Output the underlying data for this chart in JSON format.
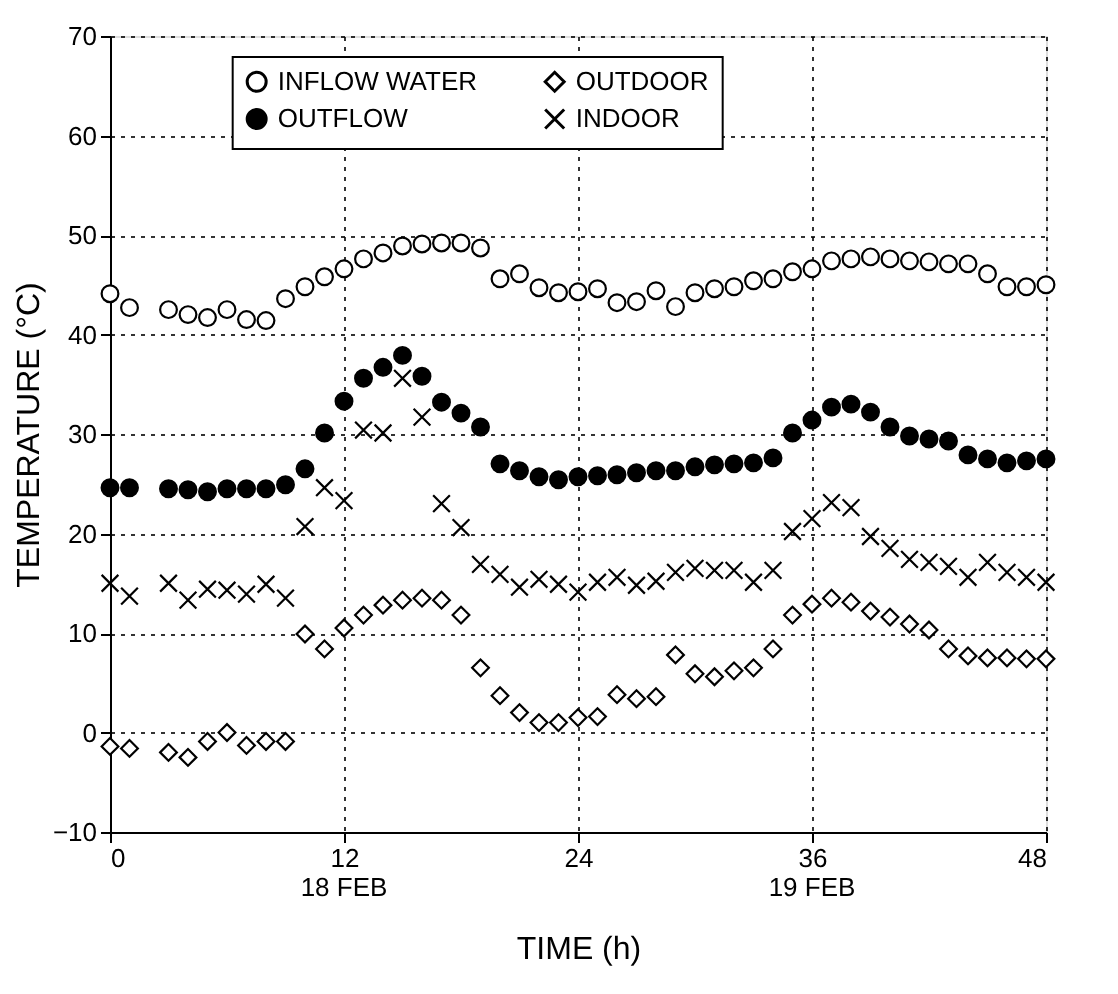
{
  "chart_data": {
    "type": "scatter",
    "xlabel": "TIME (h)",
    "ylabel": "TEMPERATURE (°C)",
    "x": [
      0,
      1,
      3,
      4,
      5,
      6,
      7,
      8,
      9,
      10,
      11,
      12,
      13,
      14,
      15,
      16,
      17,
      18,
      19,
      20,
      21,
      22,
      23,
      24,
      25,
      26,
      27,
      28,
      29,
      30,
      31,
      32,
      33,
      34,
      35,
      36,
      37,
      38,
      39,
      40,
      41,
      42,
      43,
      44,
      45,
      46,
      47,
      48
    ],
    "series": [
      {
        "name": "INFLOW WATER",
        "color": "#ffffff",
        "marker": "circle",
        "values": [
          44.1,
          42.7,
          42.5,
          42.0,
          41.7,
          42.5,
          41.5,
          41.4,
          43.6,
          44.8,
          45.8,
          46.6,
          47.6,
          48.2,
          48.9,
          49.1,
          49.2,
          49.2,
          48.7,
          45.6,
          46.1,
          44.7,
          44.2,
          44.3,
          44.6,
          43.2,
          43.3,
          44.4,
          42.8,
          44.2,
          44.6,
          44.8,
          45.4,
          45.6,
          46.3,
          46.6,
          47.4,
          47.6,
          47.8,
          47.6,
          47.4,
          47.3,
          47.1,
          47.1,
          46.1,
          44.8,
          44.8,
          45.0
        ]
      },
      {
        "name": "OUTDOOR",
        "color": "#ffffff",
        "marker": "diamond",
        "values": [
          -1.4,
          -1.6,
          -2.0,
          -2.5,
          -0.9,
          0.0,
          -1.3,
          -0.9,
          -0.9,
          9.9,
          8.4,
          10.5,
          11.8,
          12.8,
          13.3,
          13.5,
          13.3,
          11.8,
          6.5,
          3.7,
          2.0,
          1.0,
          1.0,
          1.5,
          1.6,
          3.8,
          3.4,
          3.6,
          7.8,
          5.9,
          5.6,
          6.2,
          6.5,
          8.4,
          11.8,
          12.9,
          13.5,
          13.1,
          12.2,
          11.6,
          10.9,
          10.3,
          8.4,
          7.7,
          7.5,
          7.5,
          7.4,
          7.4
        ]
      },
      {
        "name": "OUTFLOW",
        "color": "#000000",
        "marker": "circle",
        "values": [
          24.6,
          24.6,
          24.5,
          24.4,
          24.2,
          24.5,
          24.5,
          24.5,
          24.9,
          26.5,
          30.1,
          33.3,
          35.6,
          36.7,
          37.9,
          35.8,
          33.2,
          32.1,
          30.7,
          27.0,
          26.3,
          25.7,
          25.4,
          25.7,
          25.8,
          25.9,
          26.1,
          26.3,
          26.3,
          26.7,
          26.9,
          27.0,
          27.1,
          27.6,
          30.1,
          31.4,
          32.7,
          33.0,
          32.2,
          30.7,
          29.8,
          29.5,
          29.3,
          27.9,
          27.5,
          27.1,
          27.3,
          27.5
        ]
      },
      {
        "name": "INDOOR",
        "color": "#000000",
        "marker": "cross",
        "values": [
          15.0,
          13.7,
          15.0,
          13.3,
          14.4,
          14.3,
          13.9,
          14.9,
          13.5,
          20.7,
          24.6,
          23.3,
          30.4,
          30.1,
          35.6,
          31.7,
          23.0,
          20.6,
          16.9,
          15.9,
          14.6,
          15.4,
          14.9,
          14.1,
          15.1,
          15.6,
          14.8,
          15.2,
          16.1,
          16.5,
          16.3,
          16.3,
          15.1,
          16.3,
          20.2,
          21.5,
          23.1,
          22.6,
          19.7,
          18.5,
          17.4,
          17.1,
          16.7,
          15.6,
          17.1,
          16.1,
          15.6,
          15.1
        ]
      }
    ],
    "xlim": [
      0,
      48
    ],
    "xticks": [
      0,
      12,
      24,
      36,
      48
    ],
    "ylim": [
      -10,
      70
    ],
    "yticks": [
      -10,
      0,
      10,
      20,
      30,
      40,
      50,
      60,
      70
    ],
    "grid": true,
    "legend": "top",
    "annotations": [
      "18 FEB",
      "19 FEB"
    ]
  }
}
